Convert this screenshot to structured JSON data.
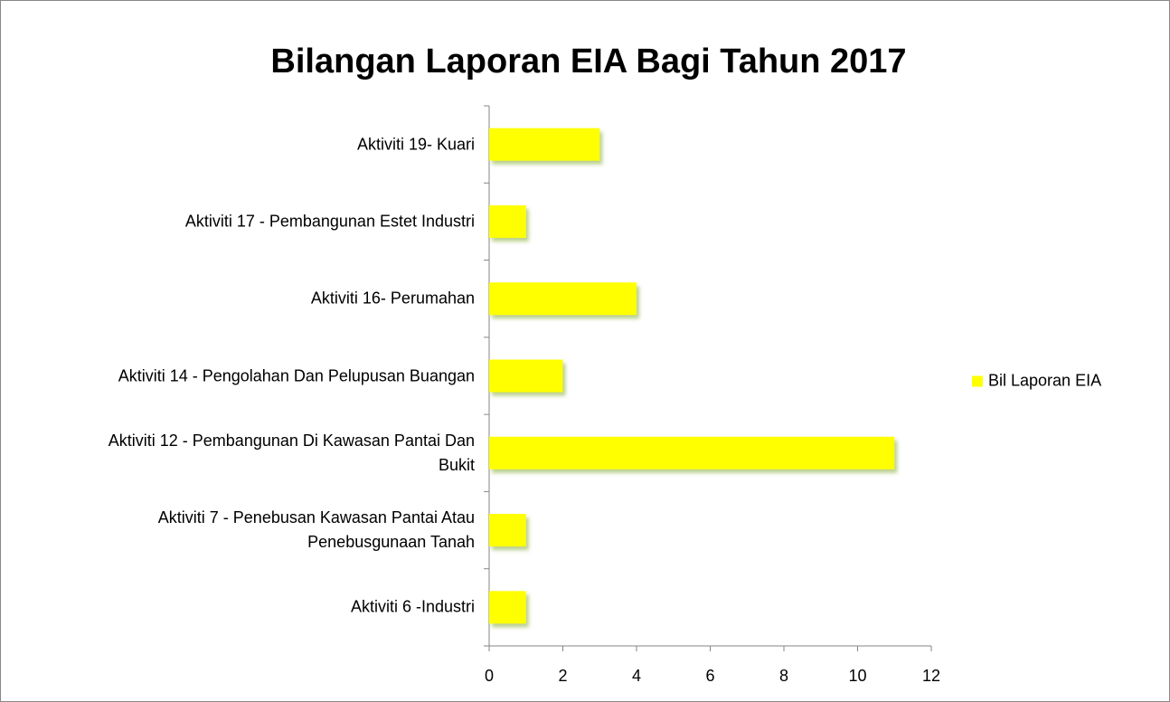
{
  "chart_data": {
    "type": "bar",
    "orientation": "horizontal",
    "title": "Bilangan Laporan EIA Bagi Tahun 2017",
    "categories": [
      "Aktiviti 6 -Industri",
      "Aktiviti 7 - Penebusan Kawasan Pantai Atau Penebusgunaan Tanah",
      "Aktiviti 12 - Pembangunan Di Kawasan Pantai Dan Bukit",
      "Aktiviti 14 - Pengolahan Dan Pelupusan Buangan",
      "Aktiviti 16- Perumahan",
      "Aktiviti 17 - Pembangunan Estet Industri",
      "Aktiviti 19- Kuari"
    ],
    "series": [
      {
        "name": "Bil Laporan EIA",
        "color": "#ffff00",
        "values": [
          1,
          1,
          11,
          2,
          4,
          1,
          3
        ]
      }
    ],
    "xlim": [
      0,
      12
    ],
    "xticks": [
      0,
      2,
      4,
      6,
      8,
      10,
      12
    ],
    "legend": "right",
    "grid": false
  }
}
